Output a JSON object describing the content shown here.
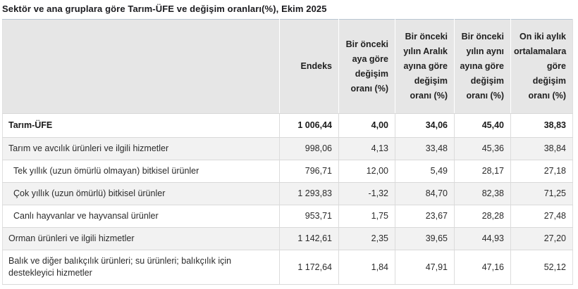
{
  "title": "Sektör ve ana gruplara göre Tarım-ÜFE ve değişim oranları(%), Ekim 2025",
  "colors": {
    "header_bg": "#e6e6e6",
    "alt_row_bg": "#f2f2f2",
    "border": "#d9d9d9",
    "text": "#262626"
  },
  "chart_data": {
    "type": "table",
    "title": "Sektör ve ana gruplara göre Tarım-ÜFE ve değişim oranları(%), Ekim 2025",
    "columns": [
      "",
      "Endeks",
      "Bir önceki aya göre değişim oranı (%)",
      "Bir önceki yılın Aralık ayına göre değişim oranı (%)",
      "Bir önceki yılın aynı ayına göre değişim oranı (%)",
      "On iki aylık ortalamalara göre değişim oranı (%)"
    ],
    "rows": [
      {
        "label": "Tarım-ÜFE",
        "values": [
          "1 006,44",
          "4,00",
          "34,06",
          "45,40",
          "38,83"
        ]
      },
      {
        "label": "Tarım ve avcılık ürünleri ve ilgili hizmetler",
        "values": [
          "998,06",
          "4,13",
          "33,48",
          "45,36",
          "38,84"
        ]
      },
      {
        "label": "Tek yıllık (uzun ömürlü olmayan) bitkisel ürünler",
        "values": [
          "796,71",
          "12,00",
          "5,49",
          "28,17",
          "27,18"
        ]
      },
      {
        "label": "Çok yıllık (uzun ömürlü) bitkisel ürünler",
        "values": [
          "1 293,83",
          "-1,32",
          "84,70",
          "82,38",
          "71,25"
        ]
      },
      {
        "label": "Canlı hayvanlar ve hayvansal ürünler",
        "values": [
          "953,71",
          "1,75",
          "23,67",
          "28,28",
          "27,48"
        ]
      },
      {
        "label": "Orman ürünleri ve ilgili hizmetler",
        "values": [
          "1 142,61",
          "2,35",
          "39,65",
          "44,93",
          "27,20"
        ]
      },
      {
        "label": "Balık ve diğer balıkçılık ürünleri; su ürünleri; balıkçılık için destekleyici hizmetler",
        "values": [
          "1 172,64",
          "1,84",
          "47,91",
          "47,16",
          "52,12"
        ]
      }
    ]
  }
}
